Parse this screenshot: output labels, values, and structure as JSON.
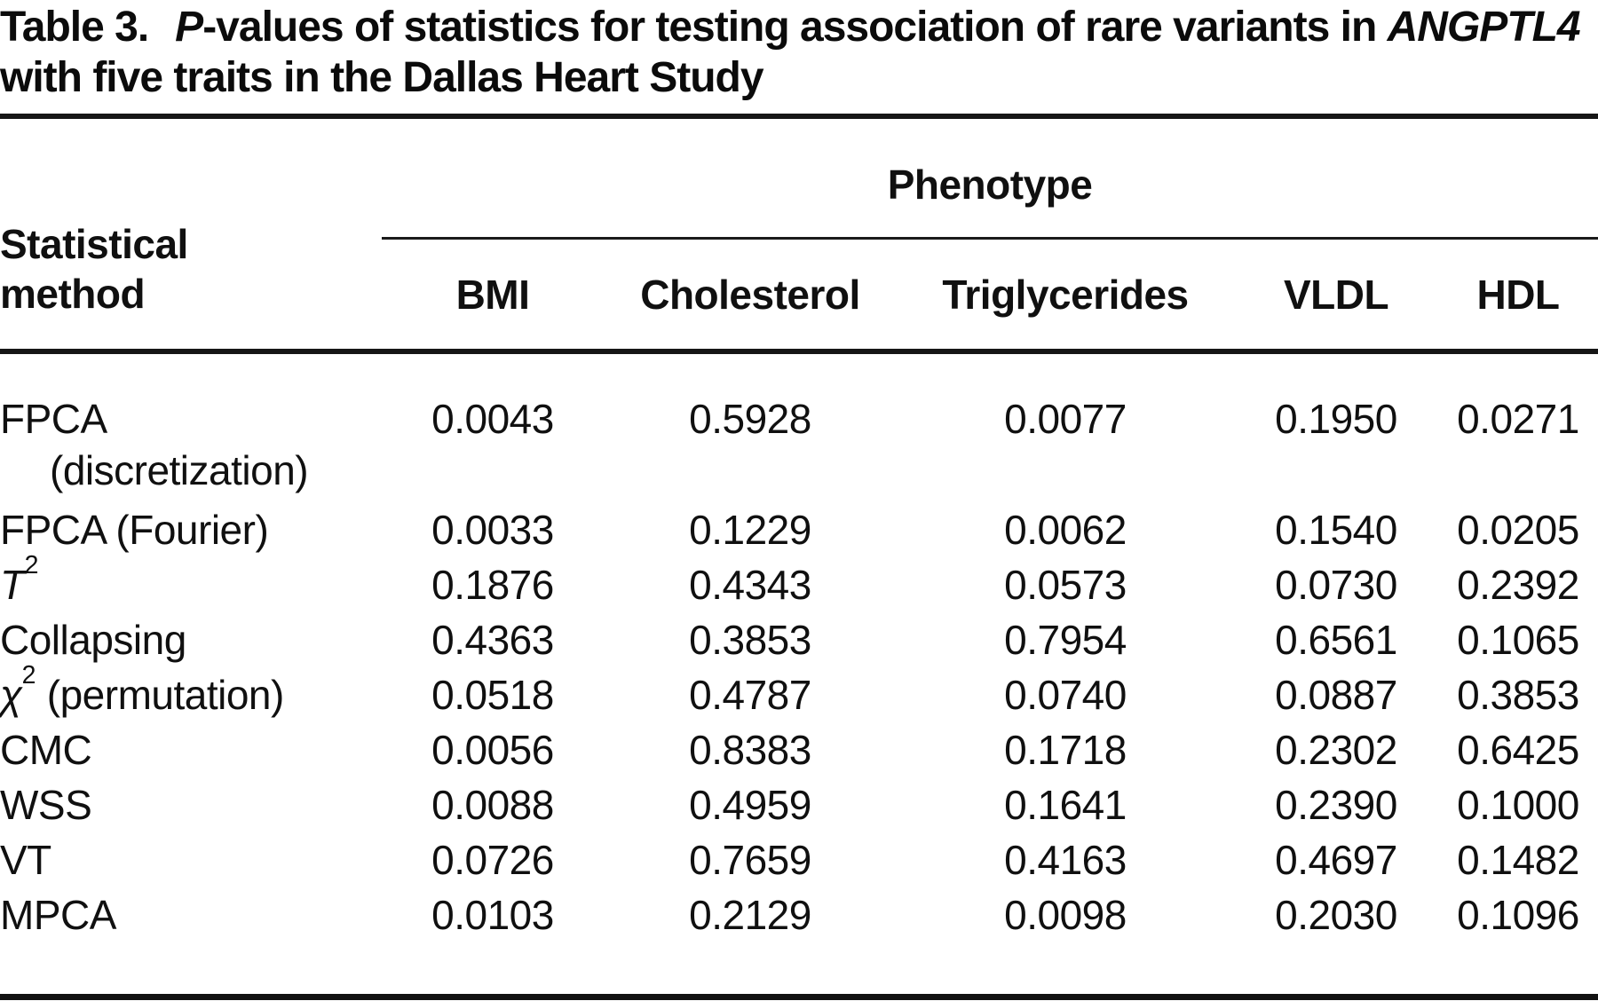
{
  "table": {
    "caption": {
      "label": "Table 3.",
      "segments": [
        {
          "text": "P",
          "italic": true
        },
        {
          "text": "-values of statistics for testing association of rare variants in "
        },
        {
          "text": "ANGPTL4",
          "italic": true
        },
        {
          "text": " with five traits in the Dallas Heart Study"
        }
      ]
    },
    "header": {
      "method_label": "Statistical\nmethod",
      "group_label": "Phenotype",
      "columns": [
        "BMI",
        "Cholesterol",
        "Triglycerides",
        "VLDL",
        "HDL"
      ]
    },
    "rows": [
      {
        "method": [
          {
            "text": "FPCA"
          }
        ],
        "method_line2": "(discretization)",
        "values": [
          "0.0043",
          "0.5928",
          "0.0077",
          "0.1950",
          "0.0271"
        ]
      },
      {
        "method": [
          {
            "text": "FPCA (Fourier)"
          }
        ],
        "values": [
          "0.0033",
          "0.1229",
          "0.0062",
          "0.1540",
          "0.0205"
        ]
      },
      {
        "method": [
          {
            "text": "T",
            "italic": true
          },
          {
            "text": "2",
            "sup": true
          }
        ],
        "values": [
          "0.1876",
          "0.4343",
          "0.0573",
          "0.0730",
          "0.2392"
        ]
      },
      {
        "method": [
          {
            "text": "Collapsing"
          }
        ],
        "values": [
          "0.4363",
          "0.3853",
          "0.7954",
          "0.6561",
          "0.1065"
        ]
      },
      {
        "method": [
          {
            "text": "χ",
            "italic": true
          },
          {
            "text": "2",
            "sup": true
          },
          {
            "text": " (permutation)"
          }
        ],
        "values": [
          "0.0518",
          "0.4787",
          "0.0740",
          "0.0887",
          "0.3853"
        ]
      },
      {
        "method": [
          {
            "text": "CMC"
          }
        ],
        "values": [
          "0.0056",
          "0.8383",
          "0.1718",
          "0.2302",
          "0.6425"
        ]
      },
      {
        "method": [
          {
            "text": "WSS"
          }
        ],
        "values": [
          "0.0088",
          "0.4959",
          "0.1641",
          "0.2390",
          "0.1000"
        ]
      },
      {
        "method": [
          {
            "text": "VT"
          }
        ],
        "values": [
          "0.0726",
          "0.7659",
          "0.4163",
          "0.4697",
          "0.1482"
        ]
      },
      {
        "method": [
          {
            "text": "MPCA"
          }
        ],
        "values": [
          "0.0103",
          "0.2129",
          "0.0098",
          "0.2030",
          "0.1096"
        ]
      }
    ]
  }
}
